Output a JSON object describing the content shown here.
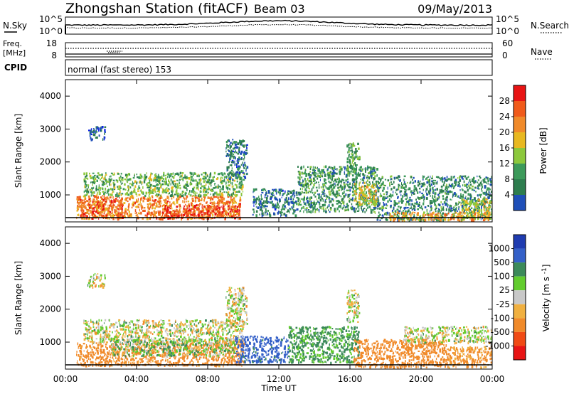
{
  "header": {
    "title": "Zhongshan Station (fitACF)",
    "beam": "Beam 03",
    "date": "09/May/2013"
  },
  "top_panel": {
    "left_label": "N.Sky",
    "right_label": "N.Search",
    "left_ticks": [
      "10^5",
      "10^0"
    ],
    "right_ticks": [
      "10^5",
      "10^0"
    ]
  },
  "freq_panel": {
    "left_label_1": "Freq.",
    "left_label_2": "[MHz]",
    "left_ticks": [
      "18",
      "8"
    ],
    "right_label": "Nave",
    "right_ticks": [
      "60",
      "0"
    ]
  },
  "cpid_panel": {
    "label": "CPID",
    "text": "normal (fast stereo) 153"
  },
  "colors": {
    "power_scale": [
      "#0b1ee6",
      "#1f4fb8",
      "#2e7d4e",
      "#3c9a5a",
      "#8cc83c",
      "#e8b820",
      "#f08a2a",
      "#f05a1a",
      "#e81414"
    ],
    "velocity_scale": [
      "#e81414",
      "#f04a14",
      "#f08a2a",
      "#f0b040",
      "#c8c8c8",
      "#c8c8c8",
      "#62cc2e",
      "#3c8a5a",
      "#3460c8",
      "#1f3cb0"
    ],
    "noise_trace": "#000000"
  },
  "chart_data": [
    {
      "type": "heatmap",
      "name": "power-panel",
      "ylabel": "Slant Range [km]",
      "yticks": [
        "4000",
        "3000",
        "2000",
        "1000"
      ],
      "ylim": [
        180,
        4500
      ],
      "xlim": [
        0,
        24
      ],
      "colorbar_label": "Power [dB]",
      "colorbar_ticks": [
        "28",
        "24",
        "20",
        "16",
        "12",
        "8",
        "4"
      ],
      "color_range": [
        0,
        32
      ],
      "clusters": [
        {
          "t0": 0.6,
          "t1": 9.8,
          "r0": 300,
          "r1": 1000,
          "v": 24
        },
        {
          "t0": 5.5,
          "t1": 9.8,
          "r0": 300,
          "r1": 700,
          "v": 29
        },
        {
          "t0": 0.8,
          "t1": 3.2,
          "r0": 300,
          "r1": 900,
          "v": 26
        },
        {
          "t0": 1.0,
          "t1": 10.0,
          "r0": 1000,
          "r1": 1700,
          "v": 14
        },
        {
          "t0": 1.2,
          "t1": 2.2,
          "r0": 2700,
          "r1": 3100,
          "v": 6
        },
        {
          "t0": 9.0,
          "t1": 10.2,
          "r0": 1500,
          "r1": 2700,
          "v": 8
        },
        {
          "t0": 10.5,
          "t1": 13.0,
          "r0": 400,
          "r1": 1200,
          "v": 8
        },
        {
          "t0": 13.0,
          "t1": 17.5,
          "r0": 500,
          "r1": 1900,
          "v": 11
        },
        {
          "t0": 15.8,
          "t1": 16.5,
          "r0": 1600,
          "r1": 2600,
          "v": 12
        },
        {
          "t0": 16.2,
          "t1": 17.6,
          "r0": 700,
          "r1": 1400,
          "v": 18
        },
        {
          "t0": 17.5,
          "t1": 24.0,
          "r0": 250,
          "r1": 1600,
          "v": 10
        },
        {
          "t0": 18.2,
          "t1": 24.0,
          "r0": 250,
          "r1": 500,
          "v": 22
        },
        {
          "t0": 22.2,
          "t1": 24.0,
          "r0": 300,
          "r1": 900,
          "v": 18
        }
      ]
    },
    {
      "type": "heatmap",
      "name": "velocity-panel",
      "ylabel": "Slant Range [km]",
      "yticks": [
        "4000",
        "3000",
        "2000",
        "1000"
      ],
      "ylim": [
        180,
        4500
      ],
      "xlim": [
        0,
        24
      ],
      "xticks": [
        "00:00",
        "04:00",
        "08:00",
        "12:00",
        "16:00",
        "20:00",
        "00:00"
      ],
      "xlabel": "Time UT",
      "colorbar_label": "Velocity [m s^-1]",
      "colorbar_ticks": [
        "1000",
        "500",
        "100",
        "25",
        "-25",
        "-100",
        "-500",
        "-1000"
      ],
      "clusters": [
        {
          "t0": 0.6,
          "t1": 10.0,
          "r0": 300,
          "r1": 1000,
          "v": -200
        },
        {
          "t0": 2.5,
          "t1": 9.5,
          "r0": 600,
          "r1": 1100,
          "v": 60
        },
        {
          "t0": 1.0,
          "t1": 10.0,
          "r0": 1000,
          "r1": 1700,
          "v": 0
        },
        {
          "t0": 1.2,
          "t1": 2.2,
          "r0": 2700,
          "r1": 3100,
          "v": 0
        },
        {
          "t0": 9.0,
          "t1": 10.2,
          "r0": 1500,
          "r1": 2700,
          "v": 0
        },
        {
          "t0": 9.5,
          "t1": 12.5,
          "r0": 400,
          "r1": 1200,
          "v": 600
        },
        {
          "t0": 12.5,
          "t1": 16.5,
          "r0": 400,
          "r1": 1500,
          "v": 150
        },
        {
          "t0": 15.8,
          "t1": 16.5,
          "r0": 1600,
          "r1": 2600,
          "v": 0
        },
        {
          "t0": 16.2,
          "t1": 21.5,
          "r0": 250,
          "r1": 1100,
          "v": -300
        },
        {
          "t0": 19.0,
          "t1": 24.0,
          "r0": 1000,
          "r1": 1500,
          "v": 0
        },
        {
          "t0": 21.5,
          "t1": 24.0,
          "r0": 250,
          "r1": 900,
          "v": -150
        }
      ]
    }
  ]
}
